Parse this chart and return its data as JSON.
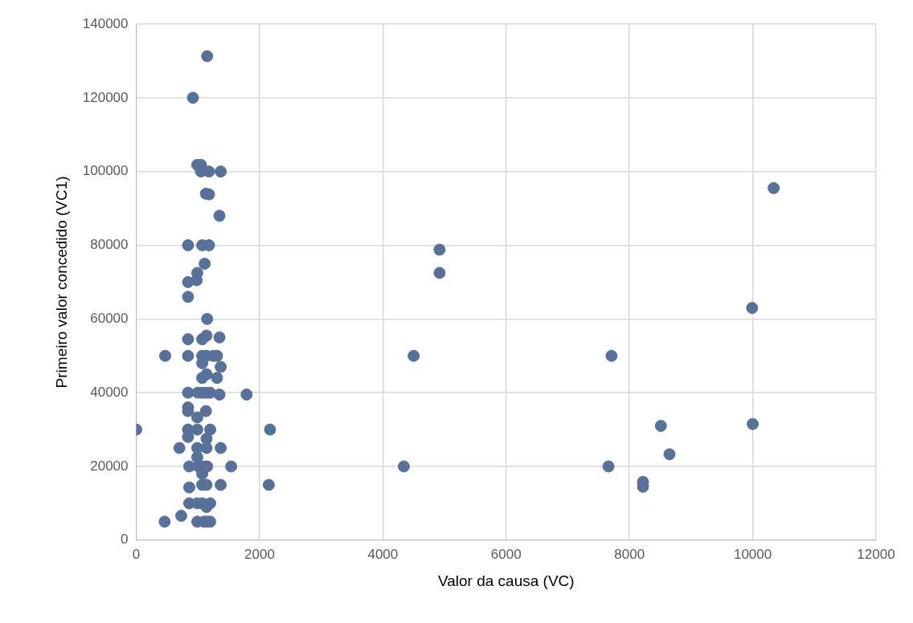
{
  "chart_data": {
    "type": "scatter",
    "xlabel": "Valor da causa (VC)",
    "ylabel": "Primeiro valor concedido (VC1)",
    "xlim": [
      0,
      12000
    ],
    "xticks": [
      0,
      2000,
      4000,
      6000,
      8000,
      10000,
      12000
    ],
    "ylim": [
      0,
      140000
    ],
    "yticks": [
      0,
      20000,
      40000,
      60000,
      80000,
      100000,
      120000,
      140000
    ],
    "grid": true,
    "legend": false,
    "marker": "circle",
    "series": [
      {
        "color": "#587199",
        "x": [
          0,
          460,
          470,
          730,
          700,
          840,
          840,
          840,
          840,
          840,
          840,
          840,
          840,
          840,
          840,
          860,
          860,
          860,
          920,
          980,
          990,
          990,
          990,
          990,
          1000,
          990,
          990,
          990,
          990,
          1010,
          1050,
          1050,
          1070,
          1070,
          1070,
          1070,
          1070,
          1070,
          1070,
          1070,
          1070,
          1100,
          1100,
          1130,
          1110,
          1150,
          1140,
          1140,
          1140,
          1140,
          1130,
          1140,
          1140,
          1150,
          1140,
          1140,
          1150,
          1150,
          1180,
          1180,
          1180,
          1200,
          1200,
          1200,
          1200,
          1250,
          1310,
          1310,
          1350,
          1350,
          1350,
          1370,
          1370,
          1370,
          1370,
          1540,
          1790,
          2170,
          2150,
          4340,
          4500,
          4920,
          4920,
          7660,
          7710,
          8220,
          8220,
          8510,
          8650,
          9990,
          10000,
          10340
        ],
        "values": [
          30000,
          5000,
          50000,
          6600,
          25000,
          80000,
          66000,
          70000,
          54500,
          50000,
          40000,
          35000,
          36000,
          30000,
          28000,
          20000,
          14300,
          10000,
          120000,
          70500,
          72500,
          101800,
          5000,
          10000,
          40000,
          33300,
          30000,
          25000,
          22500,
          20000,
          101800,
          100000,
          80000,
          50000,
          48000,
          54500,
          44000,
          40000,
          18000,
          15000,
          10000,
          20000,
          5000,
          94000,
          75000,
          60000,
          55500,
          50000,
          45000,
          40000,
          35000,
          27500,
          25000,
          20000,
          15000,
          9000,
          5000,
          131300,
          100000,
          93800,
          80000,
          30000,
          40000,
          10000,
          5000,
          50000,
          50000,
          44000,
          88000,
          55000,
          39500,
          100000,
          47000,
          25000,
          15000,
          20000,
          39500,
          30000,
          15000,
          20000,
          50000,
          78800,
          72500,
          20000,
          50000,
          15800,
          14500,
          31000,
          23300,
          63000,
          31500,
          95500
        ]
      }
    ]
  }
}
